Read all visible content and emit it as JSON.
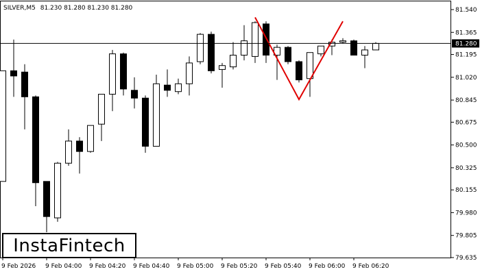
{
  "header": {
    "symbol": "SILVER,M5",
    "ohlc": "81.230 81.280 81.230 81.280"
  },
  "brand": {
    "name": "InstaFintech"
  },
  "chart_data": {
    "type": "candlestick",
    "symbol": "SILVER",
    "timeframe": "M5",
    "current_price": 81.28,
    "current_price_label": "81.280",
    "ylim": [
      79.635,
      81.54
    ],
    "y_ticks": [
      "81.540",
      "81.365",
      "81.195",
      "81.020",
      "80.845",
      "80.675",
      "80.500",
      "80.325",
      "80.155",
      "79.980",
      "79.805",
      "79.635"
    ],
    "x_ticks": [
      "9 Feb 2026",
      "9 Feb 04:00",
      "9 Feb 04:20",
      "9 Feb 04:40",
      "9 Feb 05:00",
      "9 Feb 05:20",
      "9 Feb 05:40",
      "9 Feb 06:00",
      "9 Feb 06:20"
    ],
    "candles": [
      {
        "o": 80.22,
        "h": 81.07,
        "l": 80.22,
        "c": 81.07
      },
      {
        "o": 81.07,
        "h": 81.31,
        "l": 80.87,
        "c": 81.03
      },
      {
        "o": 81.06,
        "h": 81.12,
        "l": 80.62,
        "c": 80.87
      },
      {
        "o": 80.87,
        "h": 80.88,
        "l": 80.03,
        "c": 80.21
      },
      {
        "o": 80.22,
        "h": 80.22,
        "l": 79.83,
        "c": 79.95
      },
      {
        "o": 79.94,
        "h": 80.37,
        "l": 79.91,
        "c": 80.36
      },
      {
        "o": 80.36,
        "h": 80.62,
        "l": 80.34,
        "c": 80.53
      },
      {
        "o": 80.53,
        "h": 80.56,
        "l": 80.28,
        "c": 80.45
      },
      {
        "o": 80.45,
        "h": 80.65,
        "l": 80.44,
        "c": 80.65
      },
      {
        "o": 80.66,
        "h": 80.89,
        "l": 80.53,
        "c": 80.89
      },
      {
        "o": 80.89,
        "h": 81.23,
        "l": 80.76,
        "c": 81.2
      },
      {
        "o": 81.2,
        "h": 81.21,
        "l": 80.88,
        "c": 80.93
      },
      {
        "o": 80.92,
        "h": 81.02,
        "l": 80.78,
        "c": 80.86
      },
      {
        "o": 80.86,
        "h": 80.88,
        "l": 80.44,
        "c": 80.49
      },
      {
        "o": 80.49,
        "h": 81.04,
        "l": 80.49,
        "c": 80.97
      },
      {
        "o": 80.96,
        "h": 81.08,
        "l": 80.87,
        "c": 80.92
      },
      {
        "o": 80.91,
        "h": 81.01,
        "l": 80.89,
        "c": 80.97
      },
      {
        "o": 80.97,
        "h": 81.18,
        "l": 80.88,
        "c": 81.13
      },
      {
        "o": 81.14,
        "h": 81.36,
        "l": 81.12,
        "c": 81.35
      },
      {
        "o": 81.35,
        "h": 81.37,
        "l": 81.05,
        "c": 81.07
      },
      {
        "o": 81.08,
        "h": 81.13,
        "l": 80.94,
        "c": 81.11
      },
      {
        "o": 81.1,
        "h": 81.29,
        "l": 81.08,
        "c": 81.19
      },
      {
        "o": 81.19,
        "h": 81.42,
        "l": 81.15,
        "c": 81.3
      },
      {
        "o": 81.18,
        "h": 81.45,
        "l": 81.13,
        "c": 81.44
      },
      {
        "o": 81.43,
        "h": 81.45,
        "l": 81.13,
        "c": 81.19
      },
      {
        "o": 81.19,
        "h": 81.27,
        "l": 81.0,
        "c": 81.25
      },
      {
        "o": 81.25,
        "h": 81.26,
        "l": 81.12,
        "c": 81.14
      },
      {
        "o": 81.14,
        "h": 81.15,
        "l": 80.98,
        "c": 81.0
      },
      {
        "o": 81.01,
        "h": 81.21,
        "l": 80.87,
        "c": 81.21
      },
      {
        "o": 81.2,
        "h": 81.26,
        "l": 81.18,
        "c": 81.26
      },
      {
        "o": 81.26,
        "h": 81.31,
        "l": 81.19,
        "c": 81.29
      },
      {
        "o": 81.29,
        "h": 81.32,
        "l": 81.28,
        "c": 81.3
      },
      {
        "o": 81.3,
        "h": 81.31,
        "l": 81.19,
        "c": 81.19
      },
      {
        "o": 81.19,
        "h": 81.26,
        "l": 81.09,
        "c": 81.23
      },
      {
        "o": 81.23,
        "h": 81.29,
        "l": 81.23,
        "c": 81.28
      }
    ],
    "pattern": {
      "name": "double-top",
      "color": "#e00000",
      "points": [
        [
          23,
          81.48
        ],
        [
          27,
          80.85
        ],
        [
          31,
          81.45
        ]
      ]
    },
    "colors": {
      "bull": "#ffffff",
      "bear": "#000000",
      "wick": "#000000",
      "grid": "#000000"
    }
  }
}
